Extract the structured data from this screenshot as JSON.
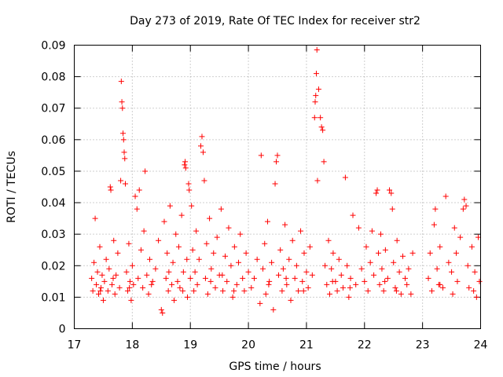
{
  "chart_data": {
    "type": "scatter",
    "title": "Day 273 of 2019, Rate Of TEC Index for receiver str2",
    "xlabel": "GPS time / hours",
    "ylabel": "ROTI / TECUs",
    "xlim": [
      17,
      24
    ],
    "ylim": [
      0,
      0.09
    ],
    "x_ticks": [
      "17",
      "18",
      "19",
      "20",
      "21",
      "22",
      "23",
      "24"
    ],
    "y_ticks": [
      "0",
      "0.01",
      "0.02",
      "0.03",
      "0.04",
      "0.05",
      "0.06",
      "0.07",
      "0.08",
      "0.09"
    ],
    "grid": true,
    "marker": "+",
    "series_color": "#ff0000",
    "series": [
      {
        "name": "ROTI",
        "points": [
          [
            17.3,
            0.016
          ],
          [
            17.32,
            0.012
          ],
          [
            17.34,
            0.021
          ],
          [
            17.36,
            0.035
          ],
          [
            17.38,
            0.014
          ],
          [
            17.4,
            0.018
          ],
          [
            17.42,
            0.011
          ],
          [
            17.44,
            0.026
          ],
          [
            17.46,
            0.013
          ],
          [
            17.48,
            0.017
          ],
          [
            17.5,
            0.009
          ],
          [
            17.52,
            0.015
          ],
          [
            17.55,
            0.022
          ],
          [
            17.58,
            0.012
          ],
          [
            17.6,
            0.019
          ],
          [
            17.62,
            0.045
          ],
          [
            17.63,
            0.044
          ],
          [
            17.65,
            0.014
          ],
          [
            17.68,
            0.028
          ],
          [
            17.7,
            0.011
          ],
          [
            17.72,
            0.017
          ],
          [
            17.75,
            0.024
          ],
          [
            17.78,
            0.013
          ],
          [
            17.8,
            0.047
          ],
          [
            17.81,
            0.0785
          ],
          [
            17.82,
            0.072
          ],
          [
            17.83,
            0.07
          ],
          [
            17.84,
            0.062
          ],
          [
            17.85,
            0.06
          ],
          [
            17.86,
            0.056
          ],
          [
            17.87,
            0.054
          ],
          [
            17.88,
            0.046
          ],
          [
            17.9,
            0.018
          ],
          [
            17.92,
            0.012
          ],
          [
            17.94,
            0.027
          ],
          [
            17.96,
            0.015
          ],
          [
            17.98,
            0.009
          ],
          [
            18.0,
            0.02
          ],
          [
            18.02,
            0.014
          ],
          [
            18.05,
            0.042
          ],
          [
            18.08,
            0.038
          ],
          [
            18.1,
            0.016
          ],
          [
            18.12,
            0.044
          ],
          [
            18.15,
            0.025
          ],
          [
            18.18,
            0.013
          ],
          [
            18.2,
            0.031
          ],
          [
            18.22,
            0.05
          ],
          [
            18.25,
            0.017
          ],
          [
            18.28,
            0.011
          ],
          [
            18.3,
            0.022
          ],
          [
            18.35,
            0.015
          ],
          [
            18.4,
            0.019
          ],
          [
            18.45,
            0.028
          ],
          [
            18.5,
            0.006
          ],
          [
            18.52,
            0.005
          ],
          [
            18.55,
            0.034
          ],
          [
            18.58,
            0.016
          ],
          [
            18.6,
            0.024
          ],
          [
            18.62,
            0.012
          ],
          [
            18.65,
            0.039
          ],
          [
            18.68,
            0.014
          ],
          [
            18.7,
            0.021
          ],
          [
            18.72,
            0.009
          ],
          [
            18.75,
            0.03
          ],
          [
            18.78,
            0.015
          ],
          [
            18.8,
            0.026
          ],
          [
            18.82,
            0.013
          ],
          [
            18.85,
            0.036
          ],
          [
            18.88,
            0.018
          ],
          [
            18.9,
            0.052
          ],
          [
            18.91,
            0.053
          ],
          [
            18.92,
            0.051
          ],
          [
            18.94,
            0.022
          ],
          [
            18.95,
            0.01
          ],
          [
            18.97,
            0.046
          ],
          [
            18.98,
            0.044
          ],
          [
            19.0,
            0.016
          ],
          [
            19.02,
            0.039
          ],
          [
            19.04,
            0.025
          ],
          [
            19.06,
            0.012
          ],
          [
            19.08,
            0.018
          ],
          [
            19.1,
            0.031
          ],
          [
            19.12,
            0.014
          ],
          [
            19.15,
            0.022
          ],
          [
            19.18,
            0.058
          ],
          [
            19.2,
            0.061
          ],
          [
            19.22,
            0.056
          ],
          [
            19.24,
            0.047
          ],
          [
            19.26,
            0.016
          ],
          [
            19.28,
            0.027
          ],
          [
            19.3,
            0.011
          ],
          [
            19.33,
            0.035
          ],
          [
            19.36,
            0.019
          ],
          [
            19.4,
            0.024
          ],
          [
            19.43,
            0.013
          ],
          [
            19.46,
            0.029
          ],
          [
            19.5,
            0.017
          ],
          [
            19.53,
            0.038
          ],
          [
            19.56,
            0.012
          ],
          [
            19.6,
            0.023
          ],
          [
            19.63,
            0.015
          ],
          [
            19.66,
            0.032
          ],
          [
            19.7,
            0.02
          ],
          [
            19.73,
            0.01
          ],
          [
            19.76,
            0.026
          ],
          [
            19.8,
            0.014
          ],
          [
            19.83,
            0.021
          ],
          [
            19.86,
            0.03
          ],
          [
            19.9,
            0.016
          ],
          [
            19.93,
            0.012
          ],
          [
            19.96,
            0.024
          ],
          [
            20.0,
            0.018
          ],
          [
            20.05,
            0.013
          ],
          [
            20.1,
            0.016
          ],
          [
            20.15,
            0.022
          ],
          [
            20.2,
            0.008
          ],
          [
            20.22,
            0.055
          ],
          [
            20.25,
            0.019
          ],
          [
            20.28,
            0.027
          ],
          [
            20.3,
            0.011
          ],
          [
            20.33,
            0.034
          ],
          [
            20.36,
            0.015
          ],
          [
            20.4,
            0.021
          ],
          [
            20.43,
            0.006
          ],
          [
            20.46,
            0.046
          ],
          [
            20.48,
            0.053
          ],
          [
            20.5,
            0.055
          ],
          [
            20.52,
            0.017
          ],
          [
            20.55,
            0.025
          ],
          [
            20.58,
            0.012
          ],
          [
            20.6,
            0.019
          ],
          [
            20.63,
            0.033
          ],
          [
            20.66,
            0.014
          ],
          [
            20.7,
            0.022
          ],
          [
            20.73,
            0.009
          ],
          [
            20.76,
            0.028
          ],
          [
            20.8,
            0.016
          ],
          [
            20.83,
            0.02
          ],
          [
            20.86,
            0.012
          ],
          [
            20.9,
            0.031
          ],
          [
            20.93,
            0.015
          ],
          [
            20.96,
            0.024
          ],
          [
            21.0,
            0.018
          ],
          [
            21.03,
            0.013
          ],
          [
            21.06,
            0.026
          ],
          [
            21.1,
            0.017
          ],
          [
            21.14,
            0.067
          ],
          [
            21.15,
            0.072
          ],
          [
            21.16,
            0.074
          ],
          [
            21.17,
            0.081
          ],
          [
            21.18,
            0.0885
          ],
          [
            21.19,
            0.047
          ],
          [
            21.21,
            0.076
          ],
          [
            21.24,
            0.067
          ],
          [
            21.26,
            0.064
          ],
          [
            21.28,
            0.063
          ],
          [
            21.3,
            0.053
          ],
          [
            21.32,
            0.02
          ],
          [
            21.35,
            0.014
          ],
          [
            21.38,
            0.028
          ],
          [
            21.4,
            0.011
          ],
          [
            21.43,
            0.019
          ],
          [
            21.46,
            0.024
          ],
          [
            21.5,
            0.015
          ],
          [
            21.53,
            0.012
          ],
          [
            21.56,
            0.022
          ],
          [
            21.6,
            0.017
          ],
          [
            21.63,
            0.013
          ],
          [
            21.67,
            0.048
          ],
          [
            21.7,
            0.02
          ],
          [
            21.73,
            0.01
          ],
          [
            21.76,
            0.016
          ],
          [
            21.8,
            0.036
          ],
          [
            21.85,
            0.014
          ],
          [
            21.9,
            0.032
          ],
          [
            21.95,
            0.019
          ],
          [
            22.0,
            0.015
          ],
          [
            22.03,
            0.026
          ],
          [
            22.06,
            0.012
          ],
          [
            22.1,
            0.021
          ],
          [
            22.13,
            0.031
          ],
          [
            22.16,
            0.017
          ],
          [
            22.2,
            0.043
          ],
          [
            22.22,
            0.044
          ],
          [
            22.24,
            0.024
          ],
          [
            22.26,
            0.014
          ],
          [
            22.28,
            0.03
          ],
          [
            22.3,
            0.019
          ],
          [
            22.33,
            0.012
          ],
          [
            22.36,
            0.025
          ],
          [
            22.4,
            0.016
          ],
          [
            22.43,
            0.044
          ],
          [
            22.46,
            0.043
          ],
          [
            22.48,
            0.038
          ],
          [
            22.5,
            0.021
          ],
          [
            22.53,
            0.013
          ],
          [
            22.56,
            0.028
          ],
          [
            22.6,
            0.018
          ],
          [
            22.63,
            0.011
          ],
          [
            22.66,
            0.023
          ],
          [
            22.7,
            0.016
          ],
          [
            22.73,
            0.014
          ],
          [
            22.76,
            0.019
          ],
          [
            22.8,
            0.011
          ],
          [
            22.83,
            0.024
          ],
          [
            23.1,
            0.016
          ],
          [
            23.13,
            0.024
          ],
          [
            23.16,
            0.012
          ],
          [
            23.2,
            0.033
          ],
          [
            23.22,
            0.038
          ],
          [
            23.25,
            0.019
          ],
          [
            23.28,
            0.014
          ],
          [
            23.3,
            0.026
          ],
          [
            23.35,
            0.013
          ],
          [
            23.4,
            0.042
          ],
          [
            23.45,
            0.021
          ],
          [
            23.5,
            0.018
          ],
          [
            23.52,
            0.011
          ],
          [
            23.55,
            0.032
          ],
          [
            23.58,
            0.024
          ],
          [
            23.6,
            0.015
          ],
          [
            23.65,
            0.029
          ],
          [
            23.7,
            0.038
          ],
          [
            23.72,
            0.041
          ],
          [
            23.75,
            0.039
          ],
          [
            23.78,
            0.02
          ],
          [
            23.8,
            0.013
          ],
          [
            23.85,
            0.026
          ],
          [
            23.9,
            0.018
          ],
          [
            23.93,
            0.01
          ],
          [
            23.96,
            0.029
          ],
          [
            23.98,
            0.015
          ],
          [
            17.45,
            0.012
          ],
          [
            17.67,
            0.016
          ],
          [
            17.95,
            0.013
          ],
          [
            18.33,
            0.014
          ],
          [
            18.63,
            0.018
          ],
          [
            18.87,
            0.012
          ],
          [
            19.35,
            0.015
          ],
          [
            19.55,
            0.017
          ],
          [
            19.75,
            0.012
          ],
          [
            20.35,
            0.014
          ],
          [
            20.65,
            0.016
          ],
          [
            20.95,
            0.012
          ],
          [
            21.45,
            0.015
          ],
          [
            21.75,
            0.013
          ],
          [
            22.35,
            0.015
          ],
          [
            22.55,
            0.012
          ],
          [
            23.3,
            0.014
          ],
          [
            23.88,
            0.012
          ]
        ]
      }
    ]
  }
}
